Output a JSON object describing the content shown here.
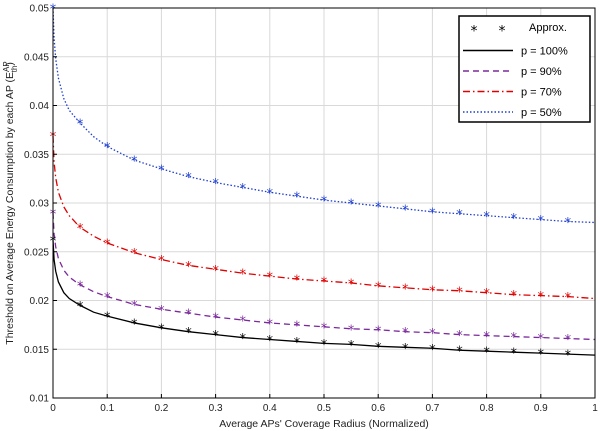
{
  "chart_data": {
    "type": "line",
    "xlabel": "Average APs' Coverage Radius (Normalized)",
    "ylabel_main": "Threshold on Average Energy Consumption by each AP (E",
    "ylabel_sup": "AP",
    "ylabel_sub": "th",
    "ylabel_close": ")",
    "xlim": [
      0,
      1
    ],
    "ylim": [
      0.01,
      0.05
    ],
    "xticks": [
      0,
      0.1,
      0.2,
      0.3,
      0.4,
      0.5,
      0.6,
      0.7,
      0.8,
      0.9,
      1
    ],
    "xtick_labels": [
      "0",
      "0.1",
      "0.2",
      "0.3",
      "0.4",
      "0.5",
      "0.6",
      "0.7",
      "0.8",
      "0.9",
      "1"
    ],
    "yticks": [
      0.01,
      0.015,
      0.02,
      0.025,
      0.03,
      0.035,
      0.04,
      0.045,
      0.05
    ],
    "ytick_labels": [
      "0.01",
      "0.015",
      "0.02",
      "0.025",
      "0.03",
      "0.035",
      "0.04",
      "0.045",
      "0.05"
    ],
    "grid": true,
    "legend_position": "top-right",
    "approx_legend": {
      "label": "Approx.",
      "marker": "*",
      "color": "#000000"
    },
    "approx_x": [
      0,
      0.05,
      0.1,
      0.15,
      0.2,
      0.25,
      0.3,
      0.35,
      0.4,
      0.45,
      0.5,
      0.55,
      0.6,
      0.65,
      0.7,
      0.75,
      0.8,
      0.85,
      0.9,
      0.95
    ],
    "series": [
      {
        "name": "p = 100%",
        "color": "#000000",
        "dash": "solid",
        "x": [
          0,
          0.002,
          0.005,
          0.01,
          0.02,
          0.03,
          0.05,
          0.075,
          0.1,
          0.15,
          0.2,
          0.25,
          0.3,
          0.35,
          0.4,
          0.45,
          0.5,
          0.55,
          0.6,
          0.65,
          0.7,
          0.75,
          0.8,
          0.85,
          0.9,
          0.95,
          1.0
        ],
        "y": [
          0.0262,
          0.0242,
          0.023,
          0.0219,
          0.0208,
          0.0202,
          0.0195,
          0.0188,
          0.0184,
          0.0177,
          0.0172,
          0.0168,
          0.0165,
          0.0162,
          0.016,
          0.0158,
          0.0156,
          0.0155,
          0.0153,
          0.0152,
          0.0151,
          0.0149,
          0.0148,
          0.0147,
          0.0146,
          0.0145,
          0.0144
        ],
        "approx_y": [
          0.0262,
          0.0195,
          0.0184,
          0.0177,
          0.0172,
          0.0168,
          0.0165,
          0.0162,
          0.016,
          0.0158,
          0.0156,
          0.0155,
          0.0153,
          0.0152,
          0.0151,
          0.0149,
          0.0148,
          0.0147,
          0.0146,
          0.0145
        ]
      },
      {
        "name": "p = 90%",
        "color": "#7b2a9c",
        "dash": "dashed",
        "x": [
          0,
          0.002,
          0.005,
          0.01,
          0.02,
          0.03,
          0.05,
          0.075,
          0.1,
          0.15,
          0.2,
          0.25,
          0.3,
          0.35,
          0.4,
          0.45,
          0.5,
          0.55,
          0.6,
          0.65,
          0.7,
          0.75,
          0.8,
          0.85,
          0.9,
          0.95,
          1.0
        ],
        "y": [
          0.029,
          0.0268,
          0.0255,
          0.0243,
          0.0231,
          0.0224,
          0.0216,
          0.0209,
          0.0204,
          0.0196,
          0.0191,
          0.0187,
          0.0183,
          0.018,
          0.0177,
          0.0175,
          0.0173,
          0.0171,
          0.017,
          0.0168,
          0.0167,
          0.0165,
          0.0164,
          0.0163,
          0.0162,
          0.0161,
          0.016
        ],
        "approx_y": [
          0.029,
          0.0216,
          0.0204,
          0.0196,
          0.0191,
          0.0187,
          0.0183,
          0.018,
          0.0177,
          0.0175,
          0.0173,
          0.0171,
          0.017,
          0.0168,
          0.0167,
          0.0165,
          0.0164,
          0.0163,
          0.0162,
          0.0161
        ]
      },
      {
        "name": "p = 70%",
        "color": "#e00000",
        "dash": "dashdot",
        "x": [
          0,
          0.002,
          0.005,
          0.01,
          0.02,
          0.03,
          0.05,
          0.075,
          0.1,
          0.15,
          0.2,
          0.25,
          0.3,
          0.35,
          0.4,
          0.45,
          0.5,
          0.55,
          0.6,
          0.65,
          0.7,
          0.75,
          0.8,
          0.85,
          0.9,
          0.95,
          1.0
        ],
        "y": [
          0.0369,
          0.0342,
          0.0326,
          0.0311,
          0.0296,
          0.0287,
          0.0275,
          0.0266,
          0.0259,
          0.0249,
          0.0242,
          0.0236,
          0.0232,
          0.0228,
          0.0225,
          0.0222,
          0.022,
          0.0218,
          0.0215,
          0.0213,
          0.0211,
          0.021,
          0.0208,
          0.0206,
          0.0205,
          0.0204,
          0.0202
        ],
        "approx_y": [
          0.0369,
          0.0275,
          0.0259,
          0.0249,
          0.0242,
          0.0236,
          0.0232,
          0.0228,
          0.0225,
          0.0222,
          0.022,
          0.0218,
          0.0215,
          0.0213,
          0.0211,
          0.021,
          0.0208,
          0.0206,
          0.0205,
          0.0204
        ]
      },
      {
        "name": "p = 50%",
        "color": "#1f3fd0",
        "dash": "dotted",
        "x": [
          0,
          0.002,
          0.005,
          0.01,
          0.02,
          0.03,
          0.05,
          0.075,
          0.1,
          0.15,
          0.2,
          0.25,
          0.3,
          0.35,
          0.4,
          0.45,
          0.5,
          0.55,
          0.6,
          0.65,
          0.7,
          0.75,
          0.8,
          0.85,
          0.9,
          0.95,
          1.0
        ],
        "y": [
          0.05,
          0.0469,
          0.0448,
          0.0428,
          0.0407,
          0.0395,
          0.0382,
          0.0368,
          0.0358,
          0.0344,
          0.0335,
          0.0327,
          0.0321,
          0.0316,
          0.0311,
          0.0307,
          0.0303,
          0.03,
          0.0297,
          0.0294,
          0.0291,
          0.0289,
          0.0287,
          0.0285,
          0.0283,
          0.0281,
          0.028
        ],
        "approx_y": [
          0.05,
          0.0382,
          0.0358,
          0.0344,
          0.0335,
          0.0327,
          0.0321,
          0.0316,
          0.0311,
          0.0307,
          0.0303,
          0.03,
          0.0297,
          0.0294,
          0.0291,
          0.0289,
          0.0287,
          0.0285,
          0.0283,
          0.0281
        ]
      }
    ]
  }
}
